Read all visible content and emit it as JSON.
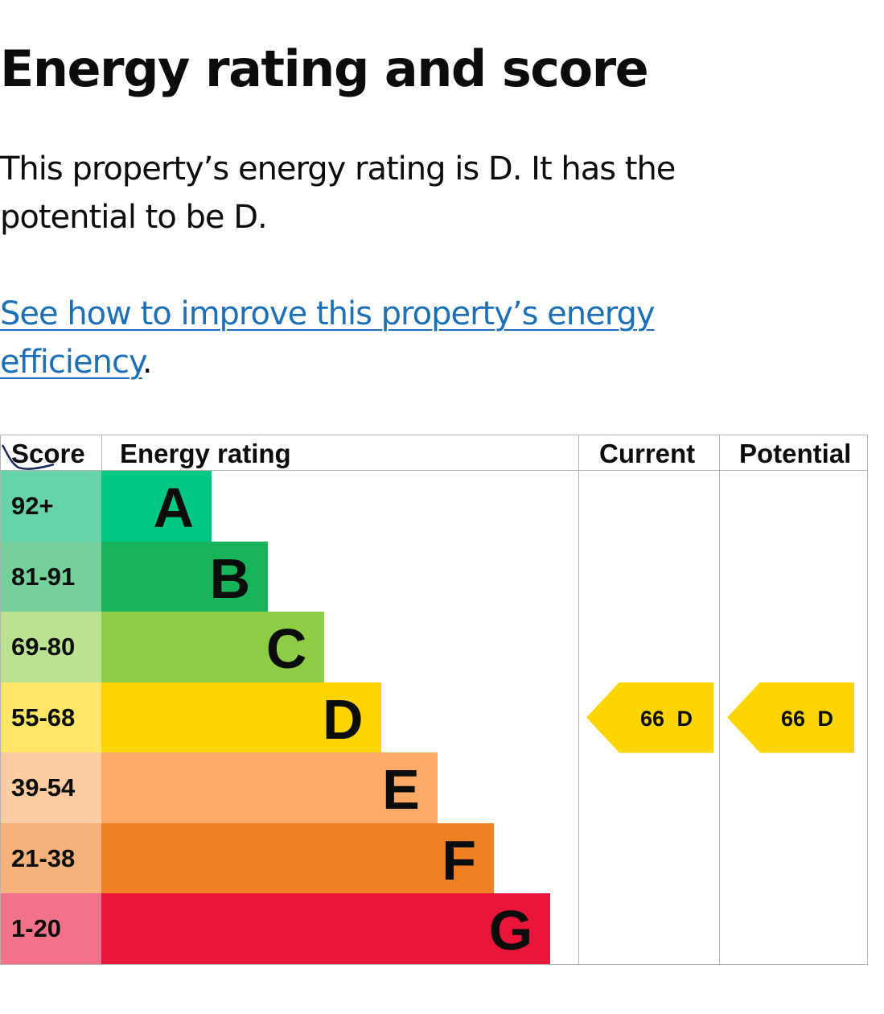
{
  "page": {
    "title": "Energy rating and score",
    "summary": "This property’s energy rating is D. It has the potential to be D.",
    "improve_link": "See how to improve this property’s energy efficiency",
    "improve_suffix": "."
  },
  "chart_data": {
    "type": "table",
    "headers": {
      "score": "Score",
      "rating": "Energy rating",
      "current": "Current",
      "potential": "Potential"
    },
    "bands": [
      {
        "score_range": "92+",
        "letter": "A",
        "color": "#00c781",
        "score_color": "#66d4a8",
        "width_level": 1
      },
      {
        "score_range": "81-91",
        "letter": "B",
        "color": "#19b459",
        "score_color": "#75d09b",
        "width_level": 2
      },
      {
        "score_range": "69-80",
        "letter": "C",
        "color": "#8dce46",
        "score_color": "#bbe290",
        "width_level": 3
      },
      {
        "score_range": "55-68",
        "letter": "D",
        "color": "#ffd500",
        "score_color": "#ffe666",
        "width_level": 4
      },
      {
        "score_range": "39-54",
        "letter": "E",
        "color": "#fcaa65",
        "score_color": "#fdcca3",
        "width_level": 5
      },
      {
        "score_range": "21-38",
        "letter": "F",
        "color": "#ef8023",
        "score_color": "#f5b37b",
        "width_level": 6
      },
      {
        "score_range": "1-20",
        "letter": "G",
        "color": "#e9153b",
        "score_color": "#f27389",
        "width_level": 7
      }
    ],
    "current": {
      "score": 66,
      "rating": "D",
      "label": "66  D",
      "color": "#ffd500"
    },
    "potential": {
      "score": 66,
      "rating": "D",
      "label": "66  D",
      "color": "#ffd500"
    }
  }
}
